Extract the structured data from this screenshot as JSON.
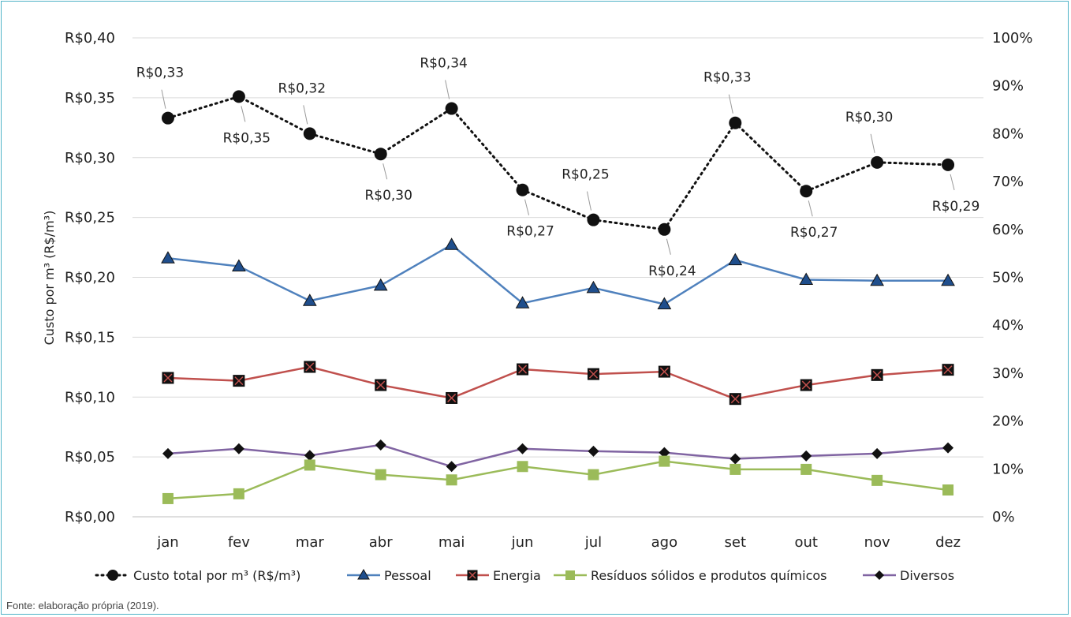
{
  "chart_data": {
    "type": "line",
    "categories": [
      "jan",
      "fev",
      "mar",
      "abr",
      "mai",
      "jun",
      "jul",
      "ago",
      "set",
      "out",
      "nov",
      "dez"
    ],
    "ylabel": "Custo por m³ (R$/m³)",
    "ylim": [
      0,
      0.4
    ],
    "yticks": [
      "R$0,00",
      "R$0,05",
      "R$0,10",
      "R$0,15",
      "R$0,20",
      "R$0,25",
      "R$0,30",
      "R$0,35",
      "R$0,40"
    ],
    "y2lim": [
      0,
      100
    ],
    "y2ticks": [
      "0%",
      "10%",
      "20%",
      "30%",
      "40%",
      "50%",
      "60%",
      "70%",
      "80%",
      "90%",
      "100%"
    ],
    "series": [
      {
        "name": "Custo total por m³ (R$/m³)",
        "axis": "left",
        "style": "dotted",
        "color": "#111111",
        "marker": "circle",
        "values": [
          0.333,
          0.351,
          0.32,
          0.303,
          0.341,
          0.273,
          0.248,
          0.24,
          0.329,
          0.272,
          0.296,
          0.294
        ],
        "labels": [
          "R$0,33",
          "R$0,35",
          "R$0,32",
          "R$0,30",
          "R$0,34",
          "R$0,27",
          "R$0,25",
          "R$0,24",
          "R$0,33",
          "R$0,27",
          "R$0,30",
          "R$0,29"
        ]
      },
      {
        "name": "Pessoal",
        "axis": "right",
        "color": "#4f81bd",
        "marker": "triangle",
        "values": [
          54.0,
          52.3,
          45.1,
          48.3,
          56.8,
          44.6,
          47.8,
          44.4,
          53.6,
          49.5,
          49.3,
          49.3
        ]
      },
      {
        "name": "Energia",
        "axis": "right",
        "color": "#c0504d",
        "marker": "square-x",
        "values": [
          29.0,
          28.4,
          31.3,
          27.5,
          24.8,
          30.8,
          29.8,
          30.3,
          24.6,
          27.5,
          29.6,
          30.7
        ]
      },
      {
        "name": "Resíduos sólidos e produtos químicos",
        "axis": "right",
        "color": "#9bbb59",
        "marker": "square",
        "values": [
          3.8,
          4.8,
          10.8,
          8.8,
          7.7,
          10.5,
          8.8,
          11.6,
          9.9,
          9.9,
          7.6,
          5.6
        ]
      },
      {
        "name": "Diversos",
        "axis": "right",
        "color": "#8064a2",
        "marker": "diamond",
        "values": [
          13.2,
          14.2,
          12.8,
          15.0,
          10.5,
          14.2,
          13.7,
          13.4,
          12.1,
          12.7,
          13.2,
          14.4
        ]
      }
    ]
  },
  "footer": {
    "source": "Fonte: elaboração própria (2019)."
  }
}
